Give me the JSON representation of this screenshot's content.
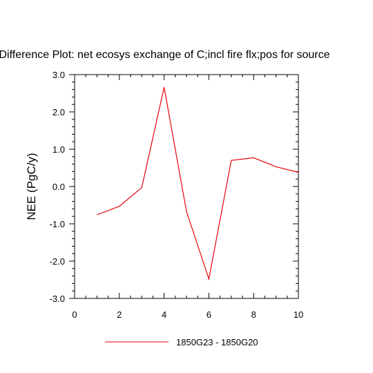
{
  "chart_data": {
    "type": "line",
    "title": "Difference Plot: net ecosys exchange of C;incl fire flx;pos for source",
    "xlabel": "",
    "ylabel": "NEE  (PgC/y)",
    "xlim": [
      0,
      10
    ],
    "ylim": [
      -3.0,
      3.0
    ],
    "x_ticks": [
      0,
      2,
      4,
      6,
      8,
      10
    ],
    "x_tick_labels": [
      "0",
      "2",
      "4",
      "6",
      "8",
      "10"
    ],
    "y_ticks": [
      -3,
      -2,
      -1,
      0,
      1,
      2,
      3
    ],
    "y_tick_labels": [
      "-3.0",
      "-2.0",
      "-1.0",
      "0.0",
      "1.0",
      "2.0",
      "3.0"
    ],
    "grid": false,
    "legend_position": "bottom-center",
    "series": [
      {
        "name": "1850G23 - 1850G20",
        "color": "#e8000b",
        "x": [
          1,
          2,
          3,
          4,
          5,
          6,
          7,
          8,
          9,
          10
        ],
        "values": [
          -0.76,
          -0.53,
          -0.03,
          2.66,
          -0.67,
          -2.48,
          0.7,
          0.77,
          0.53,
          0.38
        ]
      }
    ]
  }
}
